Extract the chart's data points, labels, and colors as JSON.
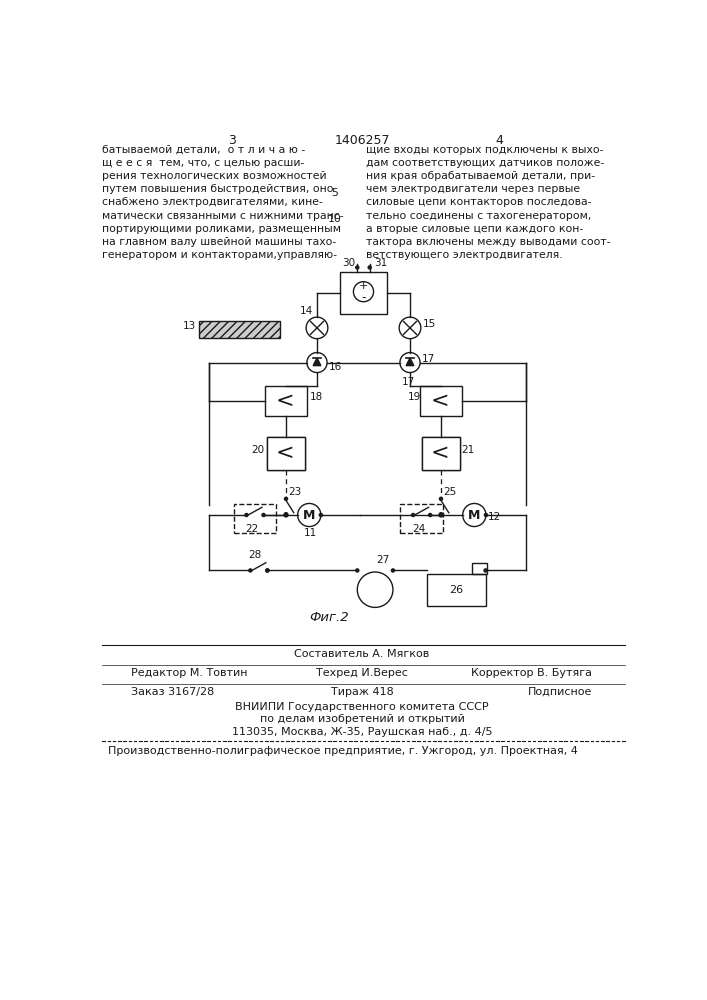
{
  "page_number_left": "3",
  "page_number_center": "1406257",
  "page_number_right": "4",
  "text_left": "батываемой детали,  о т л и ч а ю -\nщ е е с я  тем, что, с целью расши-\nрения технологических возможностей\nпутем повышения быстродействия, оно\nснабжено электродвигателями, кине-\nматически связанными с нижними транс-\nпортирующими роликами, размещенным\nна главном валу швейной машины тахо-\nгенератором и контакторами,управляю-",
  "text_right": "щие входы которых подключены к выхо-\nдам соответствующих датчиков положе-\nния края обрабатываемой детали, при-\nчем электродвигатели через первые\nсиловые цепи контакторов последова-\nтельно соединены с тахогенератором,\nа вторые силовые цепи каждого кон-\nтактора включены между выводами соот-\nветствующего электродвигателя.",
  "line_number_5": "5",
  "line_number_10": "10",
  "fig_label": "Фиг.2",
  "footer_line1": "Составитель А. Мягков",
  "footer_line2_left": "Редактор М. Товтин",
  "footer_line2_center": "Техред И.Верес",
  "footer_line2_right": "Корректор В. Бутяга",
  "footer_line3_left": "Заказ 3167/28",
  "footer_line3_center": "Тираж 418",
  "footer_line3_right": "Подписное",
  "footer_line4": "ВНИИПИ Государственного комитета СССР",
  "footer_line5": "по делам изобретений и открытий",
  "footer_line6": "113035, Москва, Ж-35, Раушская наб., д. 4/5",
  "footer_line7": "Производственно-полиграфическое предприятие, г. Ужгород, ул. Проектная, 4",
  "bg_color": "#ffffff",
  "line_color": "#1a1a1a"
}
